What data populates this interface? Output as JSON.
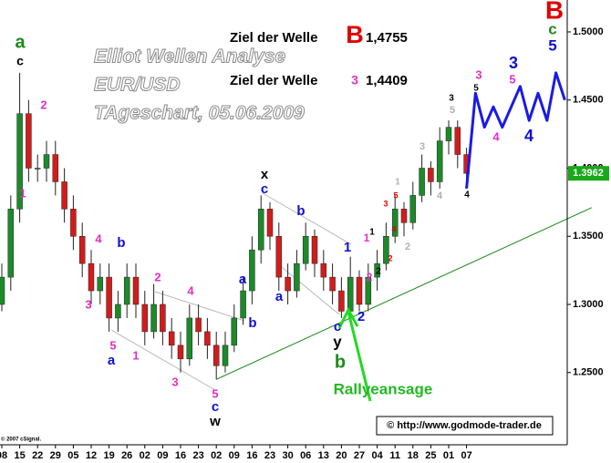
{
  "chart_data": {
    "type": "candlestick",
    "watermark": [
      "Elliot Wellen Analyse",
      "EUR/USD",
      "TAgeschart, 05.06.2009"
    ],
    "targets": [
      {
        "label": "Ziel der Welle",
        "wave": "B",
        "wave_color": "#e00000",
        "value": "1,4755"
      },
      {
        "label": "Ziel der Welle",
        "wave": "3",
        "wave_color": "#e030c8",
        "value": "1,4409"
      }
    ],
    "categories": [
      "08",
      null,
      "15",
      null,
      "22",
      null,
      "29",
      null,
      "05",
      null,
      "12",
      null,
      "19",
      null,
      "26",
      null,
      "02",
      null,
      "09",
      null,
      "16",
      null,
      "23",
      null,
      "02",
      null,
      "09",
      null,
      "16",
      null,
      "23",
      null,
      "30",
      null,
      "06",
      null,
      "13",
      null,
      "20",
      null,
      "27",
      null,
      "04",
      null,
      "11",
      null,
      "18",
      null,
      "25",
      null,
      "01",
      null,
      "07",
      null,
      null,
      null,
      null,
      null,
      null,
      null,
      null,
      null,
      null,
      null
    ],
    "ohlc": [
      [
        1.3,
        1.33,
        1.295,
        1.32
      ],
      [
        1.32,
        1.38,
        1.31,
        1.37
      ],
      [
        1.37,
        1.47,
        1.36,
        1.44
      ],
      [
        1.44,
        1.45,
        1.39,
        1.4
      ],
      [
        1.4,
        1.41,
        1.39,
        1.4
      ],
      [
        1.4,
        1.42,
        1.39,
        1.41
      ],
      [
        1.41,
        1.42,
        1.38,
        1.39
      ],
      [
        1.39,
        1.4,
        1.36,
        1.37
      ],
      [
        1.37,
        1.38,
        1.34,
        1.35
      ],
      [
        1.35,
        1.36,
        1.32,
        1.33
      ],
      [
        1.33,
        1.34,
        1.3,
        1.31
      ],
      [
        1.31,
        1.33,
        1.3,
        1.32
      ],
      [
        1.32,
        1.33,
        1.28,
        1.29
      ],
      [
        1.29,
        1.31,
        1.28,
        1.3
      ],
      [
        1.3,
        1.33,
        1.29,
        1.32
      ],
      [
        1.32,
        1.33,
        1.29,
        1.3
      ],
      [
        1.3,
        1.31,
        1.27,
        1.28
      ],
      [
        1.28,
        1.315,
        1.275,
        1.3
      ],
      [
        1.3,
        1.31,
        1.27,
        1.28
      ],
      [
        1.28,
        1.29,
        1.26,
        1.27
      ],
      [
        1.27,
        1.28,
        1.25,
        1.26
      ],
      [
        1.26,
        1.3,
        1.255,
        1.29
      ],
      [
        1.29,
        1.3,
        1.27,
        1.28
      ],
      [
        1.28,
        1.29,
        1.26,
        1.27
      ],
      [
        1.27,
        1.28,
        1.245,
        1.255
      ],
      [
        1.255,
        1.28,
        1.25,
        1.27
      ],
      [
        1.27,
        1.3,
        1.265,
        1.29
      ],
      [
        1.29,
        1.32,
        1.285,
        1.31
      ],
      [
        1.31,
        1.35,
        1.3,
        1.34
      ],
      [
        1.34,
        1.38,
        1.33,
        1.37
      ],
      [
        1.37,
        1.375,
        1.34,
        1.35
      ],
      [
        1.35,
        1.36,
        1.31,
        1.32
      ],
      [
        1.32,
        1.33,
        1.3,
        1.31
      ],
      [
        1.31,
        1.34,
        1.305,
        1.33
      ],
      [
        1.33,
        1.36,
        1.325,
        1.35
      ],
      [
        1.35,
        1.355,
        1.32,
        1.33
      ],
      [
        1.33,
        1.34,
        1.31,
        1.32
      ],
      [
        1.32,
        1.33,
        1.3,
        1.31
      ],
      [
        1.31,
        1.32,
        1.29,
        1.295
      ],
      [
        1.295,
        1.335,
        1.29,
        1.32
      ],
      [
        1.32,
        1.325,
        1.295,
        1.3
      ],
      [
        1.3,
        1.33,
        1.295,
        1.32
      ],
      [
        1.32,
        1.34,
        1.31,
        1.33
      ],
      [
        1.33,
        1.36,
        1.325,
        1.35
      ],
      [
        1.35,
        1.38,
        1.345,
        1.37
      ],
      [
        1.37,
        1.375,
        1.35,
        1.36
      ],
      [
        1.36,
        1.39,
        1.355,
        1.38
      ],
      [
        1.38,
        1.41,
        1.375,
        1.4
      ],
      [
        1.4,
        1.405,
        1.38,
        1.39
      ],
      [
        1.39,
        1.43,
        1.385,
        1.42
      ],
      [
        1.42,
        1.435,
        1.41,
        1.43
      ],
      [
        1.43,
        1.435,
        1.4,
        1.41
      ],
      [
        1.41,
        1.415,
        1.385,
        1.3962
      ],
      null,
      null,
      null,
      null,
      null,
      null,
      null,
      null,
      null,
      null,
      null
    ],
    "up_color": "#1d8a2a",
    "down_color": "#d21c1c",
    "forecast": {
      "color": "#1a1ae6",
      "values": [
        null,
        null,
        null,
        null,
        null,
        null,
        null,
        null,
        null,
        null,
        null,
        null,
        null,
        null,
        null,
        null,
        null,
        null,
        null,
        null,
        null,
        null,
        null,
        null,
        null,
        null,
        null,
        null,
        null,
        null,
        null,
        null,
        null,
        null,
        null,
        null,
        null,
        null,
        null,
        null,
        null,
        null,
        null,
        null,
        null,
        null,
        null,
        null,
        null,
        null,
        null,
        null,
        1.385,
        1.455,
        1.43,
        1.445,
        1.43,
        1.445,
        1.46,
        1.435,
        1.455,
        1.435,
        1.47,
        1.45
      ]
    },
    "trendline": {
      "color": "#1a8a1a",
      "x": [
        24,
        66
      ],
      "values": [
        1.245,
        1.371
      ]
    },
    "last_price": 1.3962,
    "ylim": [
      1.197,
      1.5234
    ],
    "yticks": [
      {
        "value": 1.25,
        "label": "1.2500"
      },
      {
        "value": 1.3,
        "label": "1.3000"
      },
      {
        "value": 1.35,
        "label": "1.3500"
      },
      {
        "value": 1.4,
        "label": "1.4000"
      },
      {
        "value": 1.45,
        "label": "1.4500"
      },
      {
        "value": 1.5,
        "label": "1.5000"
      }
    ],
    "annotations": [
      {
        "text": "a",
        "color": "#1a8a1a"
      },
      {
        "text": "c",
        "color": "#000000"
      },
      {
        "text": "2",
        "color": "#e030c8"
      },
      {
        "text": "1",
        "color": "#e030c8"
      },
      {
        "text": "4",
        "color": "#e030c8"
      },
      {
        "text": "b",
        "color": "#1010d0"
      },
      {
        "text": "3",
        "color": "#e030c8"
      },
      {
        "text": "5",
        "color": "#e030c8"
      },
      {
        "text": "a",
        "color": "#1010d0"
      },
      {
        "text": "1",
        "color": "#e030c8"
      },
      {
        "text": "2",
        "color": "#e030c8"
      },
      {
        "text": "4",
        "color": "#e030c8"
      },
      {
        "text": "3",
        "color": "#e030c8"
      },
      {
        "text": "5",
        "color": "#e030c8"
      },
      {
        "text": "c",
        "color": "#1010d0"
      },
      {
        "text": "w",
        "color": "#000000"
      },
      {
        "text": "a",
        "color": "#1010d0"
      },
      {
        "text": "b",
        "color": "#1010d0"
      },
      {
        "text": "x",
        "color": "#000000"
      },
      {
        "text": "c",
        "color": "#1010d0"
      },
      {
        "text": "b",
        "color": "#1010d0"
      },
      {
        "text": "a",
        "color": "#1010d0"
      },
      {
        "text": "1",
        "color": "#1010d0"
      },
      {
        "text": "c",
        "color": "#1010d0"
      },
      {
        "text": "y",
        "color": "#000000"
      },
      {
        "text": "b",
        "color": "#1a8a1a"
      },
      {
        "text": "2",
        "color": "#1010d0"
      },
      {
        "text": "1",
        "color": "#e030c8"
      },
      {
        "text": "2",
        "color": "#e030c8"
      },
      {
        "text": "1",
        "color": "#000000"
      },
      {
        "text": "2",
        "color": "#000000"
      },
      {
        "text": "3",
        "color": "#e00000"
      },
      {
        "text": "5",
        "color": "#e00000"
      },
      {
        "text": "4",
        "color": "#e00000"
      },
      {
        "text": "2",
        "color": "#e00000"
      },
      {
        "text": "1",
        "color": "#b0b0b0"
      },
      {
        "text": "2",
        "color": "#b0b0b0"
      },
      {
        "text": "3",
        "color": "#b0b0b0"
      },
      {
        "text": "4",
        "color": "#b0b0b0"
      },
      {
        "text": "5",
        "color": "#b0b0b0"
      },
      {
        "text": "3",
        "color": "#000000"
      },
      {
        "text": "5",
        "color": "#000000"
      },
      {
        "text": "4",
        "color": "#000000"
      },
      {
        "text": "3",
        "color": "#e030c8"
      },
      {
        "text": "5",
        "color": "#e030c8"
      },
      {
        "text": "4",
        "color": "#e030c8"
      },
      {
        "text": "3",
        "color": "#1010d0"
      },
      {
        "text": "4",
        "color": "#1010d0"
      },
      {
        "text": "B",
        "color": "#e00000"
      },
      {
        "text": "c",
        "color": "#1a8a1a"
      },
      {
        "text": "5",
        "color": "#1010d0"
      },
      {
        "text": "Rallyeansage",
        "color": "#22b922"
      }
    ],
    "copyright": "© 2007 cSignal.",
    "source": "© http://www.godmode-trader.de"
  }
}
